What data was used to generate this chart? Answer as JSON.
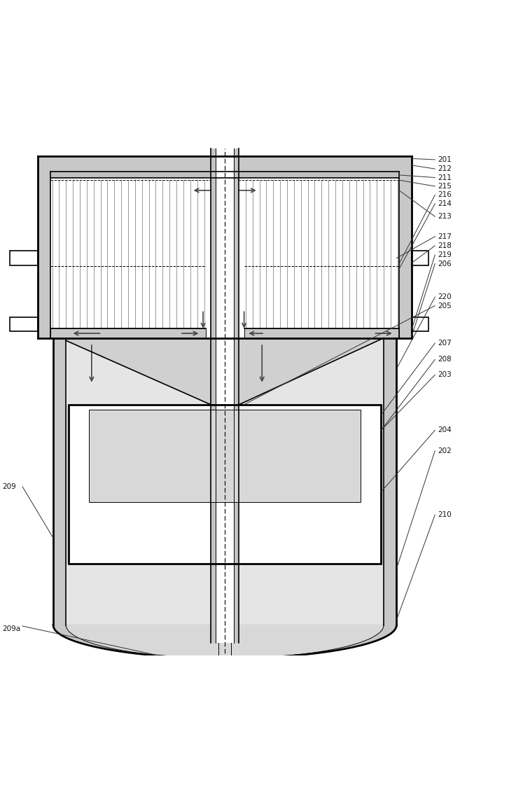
{
  "bg_color": "#ffffff",
  "lc": "#000000",
  "gray_wall": "#c8c8c8",
  "gray_inner": "#d8d8d8",
  "gray_hx_top": "#c0c0c0",
  "gray_annular": "#d0d0d0",
  "white": "#ffffff",
  "ref_lc": "#333333",
  "arrow_color": "#444444",
  "fin_color": "#888888",
  "figsize": [
    7.375,
    11.41
  ],
  "dpi": 100
}
